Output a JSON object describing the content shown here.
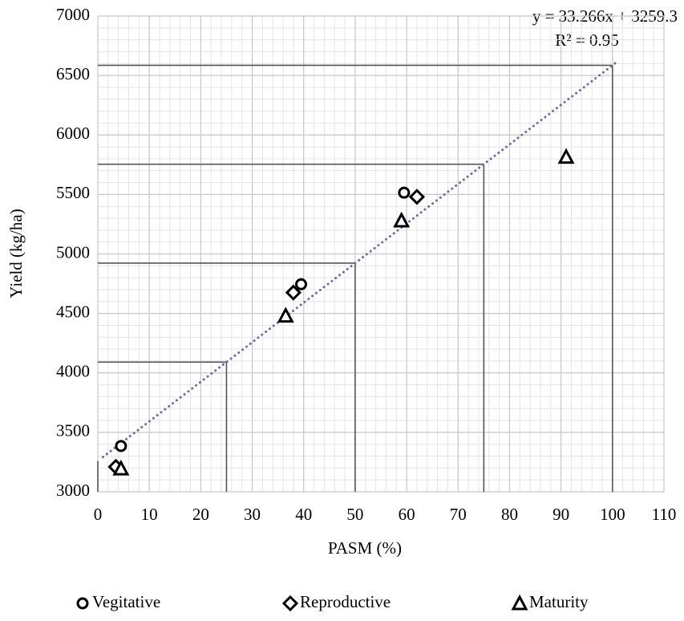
{
  "chart_data": {
    "type": "scatter",
    "xlabel": "PASM (%)",
    "ylabel": "Yield (kg/ha)",
    "xlim": [
      0,
      110
    ],
    "xticks": [
      0,
      10,
      20,
      30,
      40,
      50,
      60,
      70,
      80,
      90,
      100,
      110
    ],
    "ylim": [
      3000,
      7000
    ],
    "yticks": [
      3000,
      3500,
      4000,
      4500,
      5000,
      5500,
      6000,
      6500,
      7000
    ],
    "grid": true,
    "xminor": 2,
    "yminor": 100,
    "legend": "bottom",
    "series": [
      {
        "name": "Vegitative",
        "marker": "circle",
        "color": "#000000",
        "x": [
          4.5,
          39.5,
          59.5
        ],
        "values": [
          3385,
          4745,
          5515
        ]
      },
      {
        "name": "Reproductive",
        "marker": "diamond",
        "color": "#000000",
        "x": [
          3.5,
          38,
          62
        ],
        "values": [
          3210,
          4675,
          5480
        ]
      },
      {
        "name": "Maturity",
        "marker": "triangle",
        "color": "#000000",
        "x": [
          4.5,
          36.5,
          59,
          91
        ],
        "values": [
          3195,
          4480,
          5280,
          5815
        ]
      }
    ],
    "trendline": {
      "slope": 33.266,
      "intercept": 3259.3,
      "xlim": [
        1,
        101
      ],
      "color": "#8064a2",
      "equation": "y = 33.266x + 3259.3",
      "r2": "R² = 0.95"
    },
    "reference_x": [
      0,
      25,
      50,
      75,
      100
    ]
  }
}
